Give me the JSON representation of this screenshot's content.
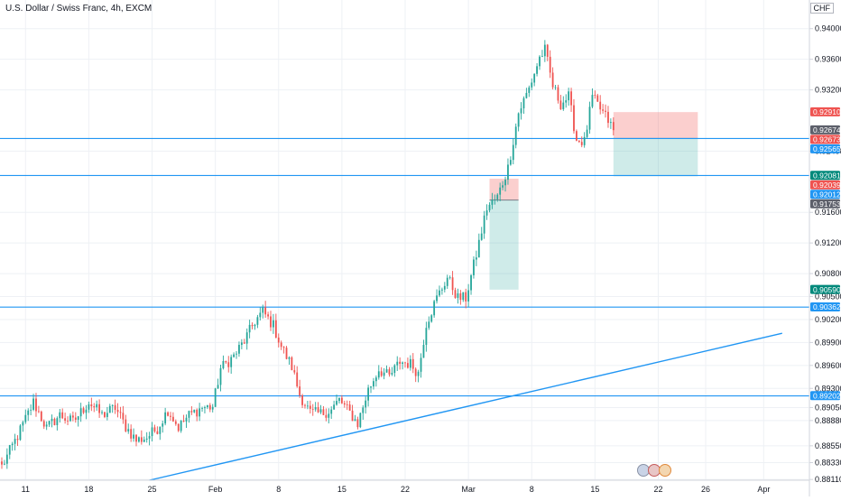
{
  "title": {
    "symbol_desc": "U.S. Dollar / Swiss Franc",
    "interval": "4h",
    "exchange": "EXCM",
    "text": "U.S. Dollar / Swiss Franc, 4h, EXCM"
  },
  "currency": "CHF",
  "colors": {
    "up": "#26a69a",
    "down": "#ef5350",
    "hline": "#2196f3",
    "grid": "#eef1f5",
    "axis_border": "#d1d4dc",
    "loss_zone": "rgba(239,83,80,0.28)",
    "profit_zone": "rgba(38,166,154,0.22)"
  },
  "chart_data": {
    "type": "candlestick",
    "title": "U.S. Dollar / Swiss Franc, 4h, EXCM",
    "y_range": [
      0.881,
      0.9428
    ],
    "x_range_bars": [
      0,
      306
    ],
    "y_ticks": [
      "0.94000",
      "0.93600",
      "0.93200",
      "0.92400",
      "0.91600",
      "0.91200",
      "0.90800",
      "0.90500",
      "0.90200",
      "0.89900",
      "0.89600",
      "0.89300",
      "0.89050",
      "0.88880",
      "0.88550",
      "0.88330",
      "0.88110"
    ],
    "x_ticks": [
      {
        "label": "11",
        "bar": 9
      },
      {
        "label": "18",
        "bar": 33
      },
      {
        "label": "25",
        "bar": 57
      },
      {
        "label": "Feb",
        "bar": 81
      },
      {
        "label": "8",
        "bar": 105
      },
      {
        "label": "15",
        "bar": 129
      },
      {
        "label": "22",
        "bar": 153
      },
      {
        "label": "Mar",
        "bar": 177
      },
      {
        "label": "8",
        "bar": 201
      },
      {
        "label": "15",
        "bar": 225
      },
      {
        "label": "22",
        "bar": 249
      },
      {
        "label": "26",
        "bar": 267
      },
      {
        "label": "Apr",
        "bar": 289
      }
    ],
    "horizontal_lines": [
      0.92565,
      0.92081,
      0.90362,
      0.89202
    ],
    "trendline": {
      "from": {
        "bar": 56,
        "price": 0.881
      },
      "to": {
        "bar": 296,
        "price": 0.9002
      }
    },
    "price_tags": [
      {
        "label": "0.92910",
        "value": 0.9291,
        "color": "#ef5350"
      },
      {
        "label": "0.92674",
        "value": 0.92674,
        "color": "#5d606b"
      },
      {
        "label": "0.92673",
        "value": 0.92673,
        "color": "#ef5350"
      },
      {
        "label": "0.92565",
        "value": 0.92565,
        "color": "#2196f3"
      },
      {
        "label": "0.92081",
        "value": 0.92081,
        "color": "#00897b"
      },
      {
        "label": "0.92039",
        "value": 0.92039,
        "color": "#ef5350"
      },
      {
        "label": "0.92012",
        "value": 0.92012,
        "color": "#2196f3"
      },
      {
        "label": "0.91753",
        "value": 0.91753,
        "color": "#5d606b"
      },
      {
        "label": "0.90590",
        "value": 0.9059,
        "color": "#00897b"
      },
      {
        "label": "0.90362",
        "value": 0.90362,
        "color": "#2196f3"
      },
      {
        "label": "0.89202",
        "value": 0.89202,
        "color": "#2196f3"
      }
    ],
    "positions": [
      {
        "side": "long",
        "start_bar": 185,
        "end_bar": 196,
        "entry": 0.9176,
        "stop": 0.9204,
        "target": 0.9059
      },
      {
        "side": "short",
        "start_bar": 232,
        "end_bar": 264,
        "entry": 0.92565,
        "stop": 0.9291,
        "target": 0.9207
      }
    ],
    "waypoints": [
      [
        0,
        0.8828
      ],
      [
        6,
        0.8868
      ],
      [
        12,
        0.8912
      ],
      [
        17,
        0.8878
      ],
      [
        22,
        0.8895
      ],
      [
        27,
        0.8886
      ],
      [
        33,
        0.8912
      ],
      [
        38,
        0.8895
      ],
      [
        43,
        0.8905
      ],
      [
        47,
        0.888
      ],
      [
        51,
        0.8862
      ],
      [
        55,
        0.8866
      ],
      [
        59,
        0.8878
      ],
      [
        63,
        0.8902
      ],
      [
        67,
        0.8879
      ],
      [
        71,
        0.8895
      ],
      [
        76,
        0.8905
      ],
      [
        80,
        0.8906
      ],
      [
        83,
        0.8956
      ],
      [
        88,
        0.8972
      ],
      [
        92,
        0.8992
      ],
      [
        96,
        0.9018
      ],
      [
        99,
        0.903
      ],
      [
        103,
        0.9012
      ],
      [
        106,
        0.8985
      ],
      [
        110,
        0.8958
      ],
      [
        113,
        0.8922
      ],
      [
        117,
        0.8898
      ],
      [
        121,
        0.8897
      ],
      [
        125,
        0.8902
      ],
      [
        128,
        0.8915
      ],
      [
        132,
        0.8898
      ],
      [
        135,
        0.8884
      ],
      [
        139,
        0.8928
      ],
      [
        143,
        0.8955
      ],
      [
        147,
        0.8945
      ],
      [
        151,
        0.8965
      ],
      [
        155,
        0.8962
      ],
      [
        158,
        0.895
      ],
      [
        161,
        0.9015
      ],
      [
        165,
        0.9048
      ],
      [
        169,
        0.9075
      ],
      [
        173,
        0.9048
      ],
      [
        176,
        0.9048
      ],
      [
        180,
        0.9105
      ],
      [
        184,
        0.9166
      ],
      [
        188,
        0.918
      ],
      [
        192,
        0.9218
      ],
      [
        196,
        0.929
      ],
      [
        200,
        0.9322
      ],
      [
        204,
        0.9362
      ],
      [
        206,
        0.9372
      ],
      [
        209,
        0.9325
      ],
      [
        212,
        0.9302
      ],
      [
        215,
        0.9311
      ],
      [
        218,
        0.9255
      ],
      [
        221,
        0.9252
      ],
      [
        224,
        0.931
      ],
      [
        227,
        0.9295
      ],
      [
        230,
        0.928
      ],
      [
        232,
        0.9267
      ]
    ],
    "last_bar": 232,
    "last_price": 0.92674
  }
}
